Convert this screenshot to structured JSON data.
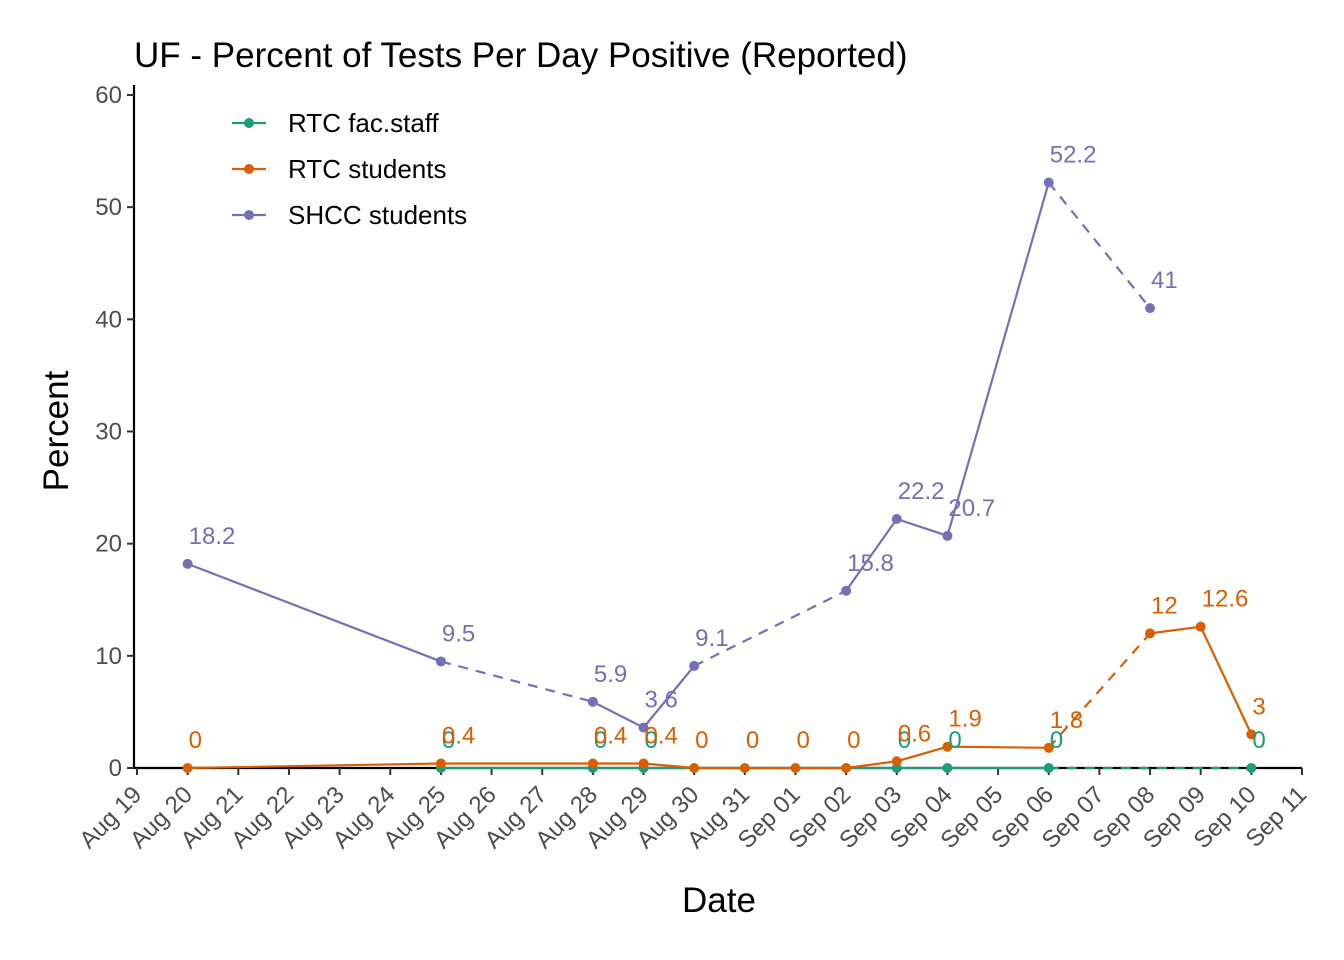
{
  "chart_data": {
    "type": "line",
    "title": "UF - Percent of Tests Per Day Positive (Reported)",
    "xlabel": "Date",
    "ylabel": "Percent",
    "ylim": [
      0,
      60
    ],
    "yticks": [
      0,
      10,
      20,
      30,
      40,
      50,
      60
    ],
    "xlim": [
      "2020-08-19",
      "2020-09-11"
    ],
    "xticks": [
      "Aug 19",
      "Aug 20",
      "Aug 21",
      "Aug 22",
      "Aug 23",
      "Aug 24",
      "Aug 25",
      "Aug 26",
      "Aug 27",
      "Aug 28",
      "Aug 29",
      "Aug 30",
      "Aug 31",
      "Sep 01",
      "Sep 02",
      "Sep 03",
      "Sep 04",
      "Sep 05",
      "Sep 06",
      "Sep 07",
      "Sep 08",
      "Sep 09",
      "Sep 10",
      "Sep 11"
    ],
    "grid": false,
    "legend_position": "top-left",
    "line_style_note": "dashed segments span gaps between non-consecutive reporting days",
    "series": [
      {
        "name": "RTC fac.staff",
        "color": "#1b9e77",
        "points": [
          {
            "x": "2020-08-25",
            "y": 0,
            "label": "0"
          },
          {
            "x": "2020-08-28",
            "y": 0,
            "label": "0"
          },
          {
            "x": "2020-08-29",
            "y": 0,
            "label": "0"
          },
          {
            "x": "2020-09-03",
            "y": 0,
            "label": "0"
          },
          {
            "x": "2020-09-04",
            "y": 0,
            "label": "0"
          },
          {
            "x": "2020-09-06",
            "y": 0,
            "label": "0"
          },
          {
            "x": "2020-09-10",
            "y": 0,
            "label": "0"
          }
        ]
      },
      {
        "name": "RTC students",
        "color": "#d95f02",
        "points": [
          {
            "x": "2020-08-20",
            "y": 0,
            "label": "0"
          },
          {
            "x": "2020-08-25",
            "y": 0.4,
            "label": "0.4"
          },
          {
            "x": "2020-08-28",
            "y": 0.4,
            "label": "0.4"
          },
          {
            "x": "2020-08-29",
            "y": 0.4,
            "label": "0.4"
          },
          {
            "x": "2020-08-30",
            "y": 0,
            "label": "0"
          },
          {
            "x": "2020-08-31",
            "y": 0,
            "label": "0"
          },
          {
            "x": "2020-09-01",
            "y": 0,
            "label": "0"
          },
          {
            "x": "2020-09-02",
            "y": 0,
            "label": "0"
          },
          {
            "x": "2020-09-03",
            "y": 0.6,
            "label": "0.6"
          },
          {
            "x": "2020-09-04",
            "y": 1.9,
            "label": "1.9"
          },
          {
            "x": "2020-09-06",
            "y": 1.8,
            "label": "1.8"
          },
          {
            "x": "2020-09-08",
            "y": 12,
            "label": "12"
          },
          {
            "x": "2020-09-09",
            "y": 12.6,
            "label": "12.6"
          },
          {
            "x": "2020-09-10",
            "y": 3,
            "label": "3"
          }
        ]
      },
      {
        "name": "SHCC students",
        "color": "#7570b3",
        "points": [
          {
            "x": "2020-08-20",
            "y": 18.2,
            "label": "18.2"
          },
          {
            "x": "2020-08-25",
            "y": 9.5,
            "label": "9.5"
          },
          {
            "x": "2020-08-28",
            "y": 5.9,
            "label": "5.9"
          },
          {
            "x": "2020-08-29",
            "y": 3.6,
            "label": "3.6"
          },
          {
            "x": "2020-08-30",
            "y": 9.1,
            "label": "9.1"
          },
          {
            "x": "2020-09-02",
            "y": 15.8,
            "label": "15.8"
          },
          {
            "x": "2020-09-03",
            "y": 22.2,
            "label": "22.2"
          },
          {
            "x": "2020-09-04",
            "y": 20.7,
            "label": "20.7"
          },
          {
            "x": "2020-09-06",
            "y": 52.2,
            "label": "52.2"
          },
          {
            "x": "2020-09-08",
            "y": 41,
            "label": "41"
          }
        ]
      }
    ]
  }
}
